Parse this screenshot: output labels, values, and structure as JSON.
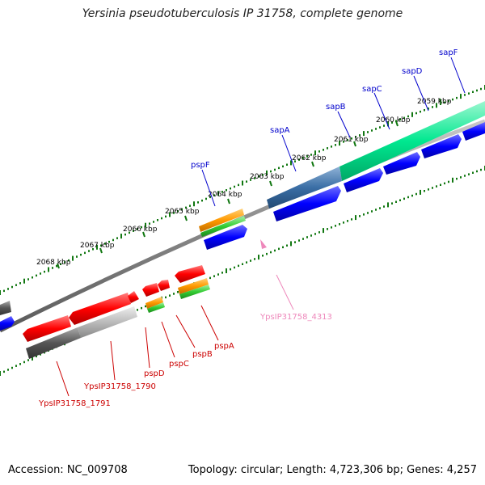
{
  "title": "Yersinia pseudotuberculosis IP 31758, complete genome",
  "footer": {
    "accession": "Accession: NC_009708",
    "summary": "Topology: circular; Length: 4,723,306 bp; Genes: 4,257"
  },
  "ticks": [
    {
      "label": "2059 kbp"
    },
    {
      "label": "2060 kbp"
    },
    {
      "label": "2061 kbp"
    },
    {
      "label": "2062 kbp"
    },
    {
      "label": "2063 kbp"
    },
    {
      "label": "2064 kbp"
    },
    {
      "label": "2065 kbp"
    },
    {
      "label": "2066 kbp"
    },
    {
      "label": "2067 kbp"
    },
    {
      "label": "2068 kbp"
    }
  ],
  "forward_genes": [
    {
      "name": "sapF"
    },
    {
      "name": "sapD"
    },
    {
      "name": "sapC"
    },
    {
      "name": "sapB"
    },
    {
      "name": "sapA"
    },
    {
      "name": "pspF"
    }
  ],
  "reverse_genes": [
    {
      "name": "pspA"
    },
    {
      "name": "pspB"
    },
    {
      "name": "pspC"
    },
    {
      "name": "pspD"
    },
    {
      "name": "YpsIP31758_1790"
    },
    {
      "name": "YpsIP31758_1791"
    }
  ],
  "other_features": [
    {
      "name": "YpsIP31758_4313"
    }
  ],
  "colors": {
    "cds_forward": "#0000ff",
    "cds_reverse": "#ff0000",
    "gene_green": "#00e890",
    "gene_steel": "#3a6ea5",
    "gene_grey": "#555555",
    "orange": "#ff9900",
    "green": "#33cc33",
    "tick_green": "#117711",
    "label_blue": "#0000cc",
    "label_red": "#cc0000",
    "label_pink": "#ee88bb"
  }
}
